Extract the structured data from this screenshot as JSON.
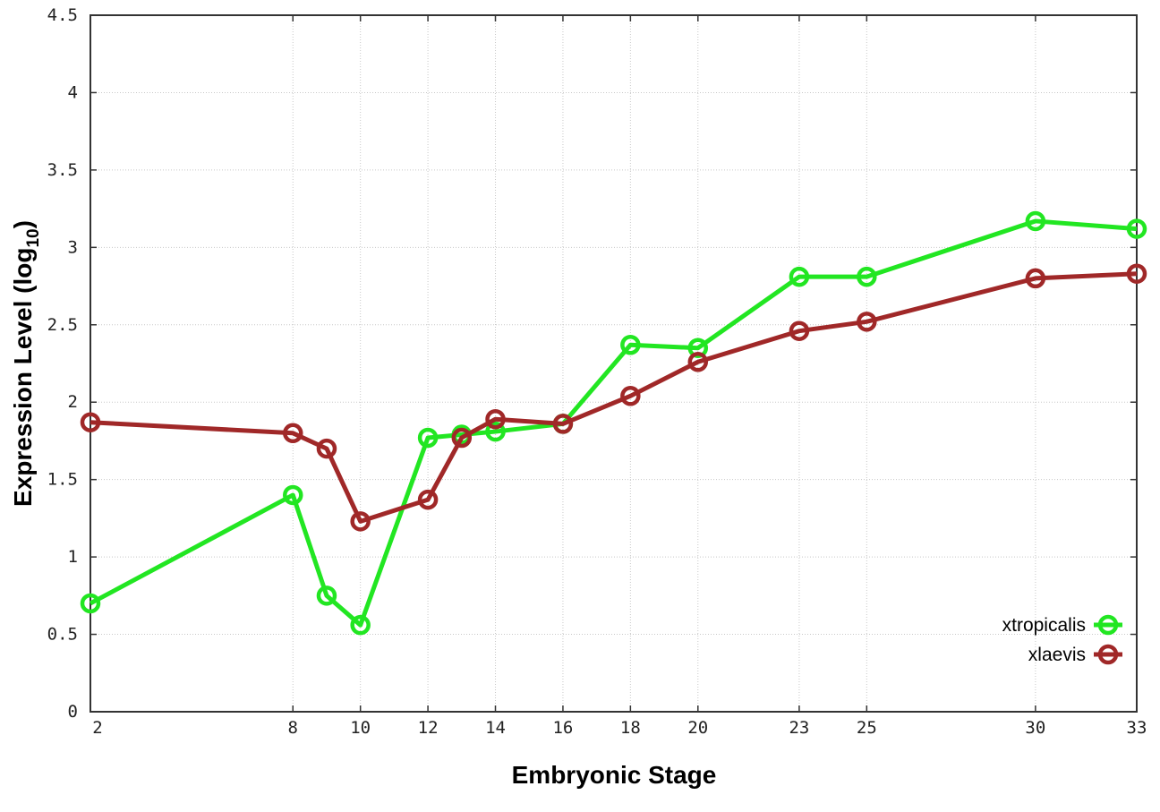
{
  "chart_data": {
    "type": "line",
    "title": "",
    "xlabel": "Embryonic Stage",
    "ylabel": "Expression Level (log",
    "ylabel_sub": "10",
    "ylabel_end": ")",
    "xlim": [
      2,
      33
    ],
    "ylim": [
      0,
      4.5
    ],
    "x_ticks": [
      2,
      8,
      10,
      12,
      14,
      16,
      18,
      20,
      23,
      25,
      30,
      33
    ],
    "y_ticks": [
      "0",
      "0.5",
      "1",
      "1.5",
      "2",
      "2.5",
      "3",
      "3.5",
      "4",
      "4.5"
    ],
    "grid": true,
    "legend_position": "bottom-right",
    "x": [
      2,
      8,
      9,
      10,
      12,
      13,
      14,
      16,
      18,
      20,
      23,
      25,
      30,
      33
    ],
    "series": [
      {
        "name": "xtropicalis",
        "color": "#22e622",
        "values": [
          0.7,
          1.4,
          0.75,
          0.56,
          1.77,
          1.79,
          1.81,
          1.86,
          2.37,
          2.35,
          2.81,
          2.81,
          3.17,
          3.12
        ]
      },
      {
        "name": "xlaevis",
        "color": "#a02828",
        "values": [
          1.87,
          1.8,
          1.7,
          1.23,
          1.37,
          1.77,
          1.89,
          1.86,
          2.04,
          2.26,
          2.46,
          2.52,
          2.8,
          2.83
        ]
      }
    ]
  }
}
